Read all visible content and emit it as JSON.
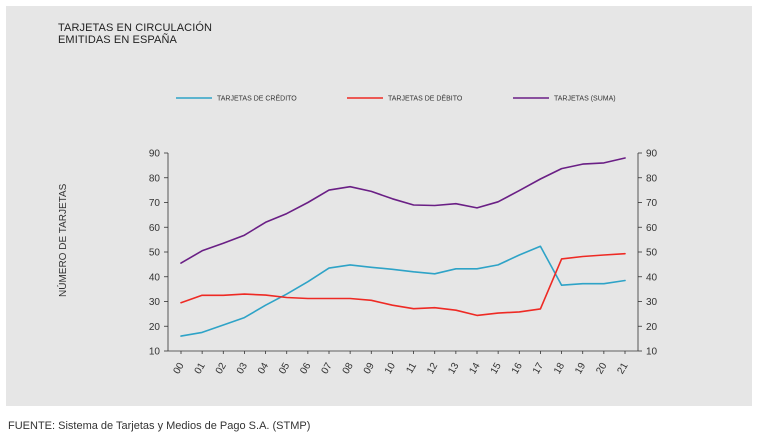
{
  "chart_data": {
    "type": "line",
    "title": [
      "TARJETAS EN CIRCULACIÓN",
      "EMITIDAS EN ESPAÑA"
    ],
    "ylabel": "NÚMERO DE TARJETAS",
    "xlabel": "",
    "categories": [
      "00",
      "01",
      "02",
      "03",
      "04",
      "05",
      "06",
      "07",
      "08",
      "09",
      "10",
      "11",
      "12",
      "13",
      "14",
      "15",
      "16",
      "17",
      "18",
      "19",
      "20",
      "21"
    ],
    "ylim": [
      10,
      90
    ],
    "yticks": [
      10,
      20,
      30,
      40,
      50,
      60,
      70,
      80,
      90
    ],
    "series": [
      {
        "name": "TARJETAS DE CRÉDITO",
        "color": "#2ea3c7",
        "values": [
          16,
          17.5,
          20.5,
          23.5,
          28.5,
          33,
          38,
          43.5,
          44.8,
          43.8,
          43,
          42,
          41.2,
          43.2,
          43.2,
          44.8,
          48.8,
          52.3,
          36.6,
          37.2,
          37.2,
          38.5
        ]
      },
      {
        "name": "TARJETAS DE DÉBITO",
        "color": "#ee2a24",
        "values": [
          29.5,
          32.5,
          32.5,
          33,
          32.6,
          31.6,
          31.2,
          31.2,
          31.2,
          30.5,
          28.5,
          27.1,
          27.5,
          26.5,
          24.4,
          25.3,
          25.8,
          27,
          47.2,
          48.2,
          48.8,
          49.3
        ]
      },
      {
        "name": "TARJETAS (SUMA)",
        "color": "#6a1f85",
        "values": [
          45.5,
          50.5,
          53.5,
          56.8,
          62,
          65.5,
          70,
          75,
          76.4,
          74.5,
          71.5,
          69,
          68.8,
          69.5,
          67.8,
          70.3,
          74.8,
          79.5,
          83.7,
          85.5,
          86,
          88
        ]
      }
    ],
    "legend_position": "top"
  },
  "footer": {
    "source": "FUENTE: Sistema de Tarjetas y Medios de Pago S.A. (STMP)"
  }
}
